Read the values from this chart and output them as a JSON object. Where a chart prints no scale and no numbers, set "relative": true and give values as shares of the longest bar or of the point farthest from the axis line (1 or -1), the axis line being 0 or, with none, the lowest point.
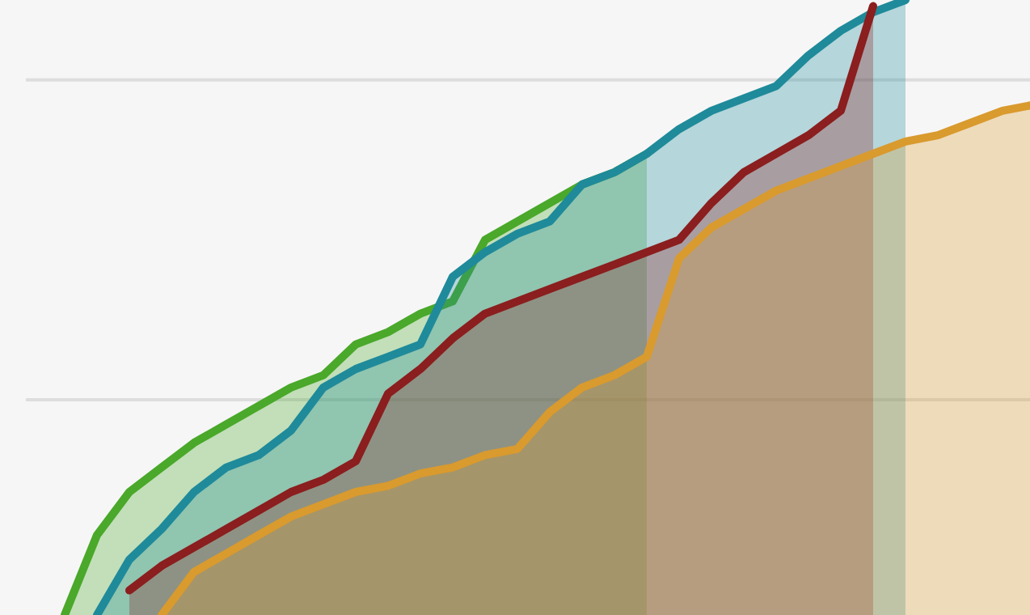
{
  "chart_data": {
    "type": "area",
    "relative": true,
    "ref_lines": [
      {
        "axis": "y",
        "value": 0.35,
        "color": "#dddddd"
      },
      {
        "axis": "y",
        "value": 0.87,
        "color": "#dddddd"
      }
    ],
    "categories": [
      null,
      null,
      null,
      null,
      null,
      null,
      null,
      null,
      null,
      null,
      null,
      null,
      null,
      null,
      null,
      null,
      null,
      null,
      null,
      null,
      null,
      null,
      null,
      null,
      null,
      null,
      null,
      null,
      null,
      null,
      null,
      null,
      null
    ],
    "series": [
      {
        "color": "#4aa82a",
        "values": [
          null,
          null,
          0,
          0.13,
          0.2,
          0.24,
          0.28,
          0.31,
          0.34,
          0.37,
          0.39,
          0.44,
          0.46,
          0.49,
          0.51,
          0.61,
          0.64,
          0.67,
          0.7,
          0.72,
          0.75,
          null,
          null,
          null,
          null,
          null,
          null,
          null,
          null,
          null,
          null,
          null,
          null
        ]
      },
      {
        "color": "#1f8a9a",
        "values": [
          null,
          null,
          null,
          0,
          0.09,
          0.14,
          0.2,
          0.24,
          0.26,
          0.3,
          0.37,
          0.4,
          0.42,
          0.44,
          0.55,
          0.59,
          0.62,
          0.64,
          0.7,
          0.72,
          0.75,
          0.79,
          0.82,
          0.84,
          0.86,
          0.91,
          0.95,
          0.98,
          1,
          null,
          null,
          null,
          null
        ]
      },
      {
        "color": "#8b1e1e",
        "values": [
          null,
          null,
          null,
          null,
          0.04,
          0.08,
          0.11,
          0.14,
          0.17,
          0.2,
          0.22,
          0.25,
          0.36,
          0.4,
          0.45,
          0.49,
          0.51,
          0.53,
          0.55,
          0.57,
          0.59,
          0.61,
          0.67,
          0.72,
          0.75,
          0.78,
          0.82,
          0.99,
          null,
          null,
          null,
          null,
          null
        ]
      },
      {
        "color": "#d99a2e",
        "values": [
          null,
          null,
          null,
          null,
          null,
          0,
          0.07,
          0.1,
          0.13,
          0.16,
          0.18,
          0.2,
          0.21,
          0.23,
          0.24,
          0.26,
          0.27,
          0.33,
          0.37,
          0.39,
          0.42,
          0.58,
          0.63,
          0.66,
          0.69,
          0.71,
          0.73,
          0.75,
          0.77,
          0.78,
          0.8,
          0.82,
          0.83
        ]
      }
    ]
  }
}
